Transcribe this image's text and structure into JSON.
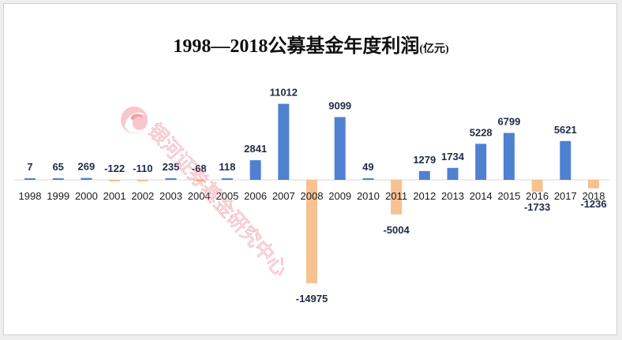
{
  "chart_data": {
    "type": "bar",
    "title": "1998—2018公募基金年度利润",
    "title_unit": "(亿元)",
    "xlabel": "",
    "ylabel": "",
    "categories": [
      "1998",
      "1999",
      "2000",
      "2001",
      "2002",
      "2003",
      "2004",
      "2005",
      "2006",
      "2007",
      "2008",
      "2009",
      "2010",
      "2011",
      "2012",
      "2013",
      "2014",
      "2015",
      "2016",
      "2017",
      "2018"
    ],
    "values": [
      7,
      65,
      269,
      -122,
      -110,
      235,
      -68,
      118,
      2841,
      11012,
      -14975,
      9099,
      49,
      -5004,
      1279,
      1734,
      5228,
      6799,
      -1733,
      5621,
      -1236
    ],
    "ylim": [
      -15000,
      11500
    ],
    "grid": false,
    "legend": "none",
    "colors": {
      "positive": "#4f81d0",
      "negative": "#f6c291"
    }
  },
  "watermark": {
    "text": "银河证券基金研究中心",
    "logo": "galaxy-securities-logo-icon"
  }
}
